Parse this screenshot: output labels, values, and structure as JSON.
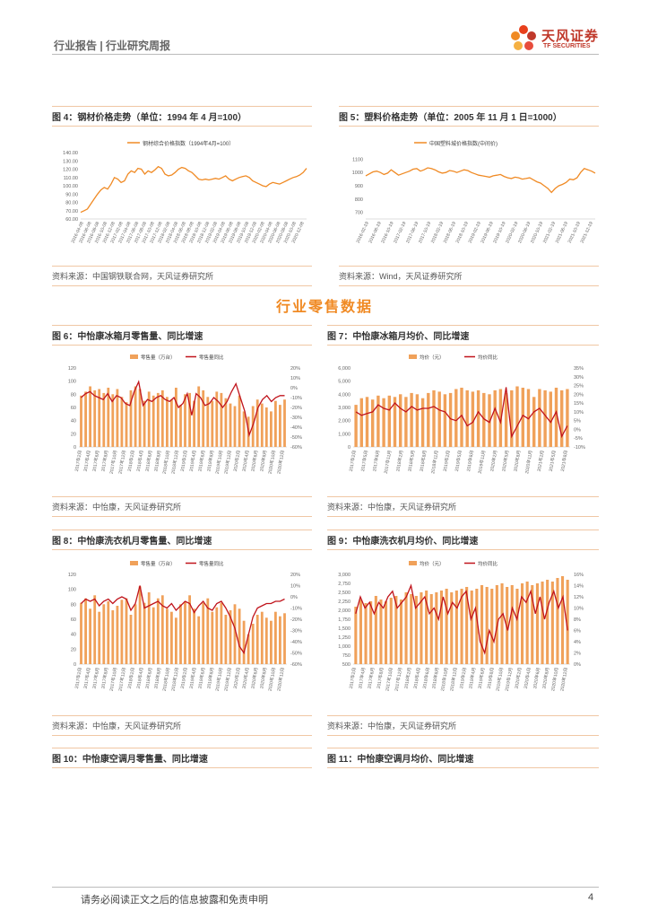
{
  "header": {
    "title": "行业报告 | 行业研究周报",
    "logo_cn": "天风证券",
    "logo_en": "TF SECURITIES"
  },
  "section_title": "行业零售数据",
  "figures": [
    {
      "caption": "图 4：钢材价格走势（单位：1994 年 4 月=100）",
      "source": "资料来源：中国钢铁联合网，天风证券研究所"
    },
    {
      "caption": "图 5：塑料价格走势（单位：2005 年 11 月 1 日=1000）",
      "source": "资料来源：Wind，天风证券研究所"
    },
    {
      "caption": "图 6：中怡康冰箱月零售量、同比增速",
      "source": "资料来源：中怡康，天风证券研究所"
    },
    {
      "caption": "图 7：中怡康冰箱月均价、同比增速",
      "source": "资料来源：中怡康，天风证券研究所"
    },
    {
      "caption": "图 8：中怡康洗衣机月零售量、同比增速",
      "source": "资料来源：中怡康，天风证券研究所"
    },
    {
      "caption": "图 9：中怡康洗衣机月均价、同比增速",
      "source": "资料来源：中怡康，天风证券研究所"
    },
    {
      "caption": "图 10：中怡康空调月零售量、同比增速"
    },
    {
      "caption": "图 11：中怡康空调月均价、同比增速"
    }
  ],
  "chart_data": [
    {
      "type": "line",
      "id": "steel",
      "legend": [
        "钢材综合价格指数（1994年4月=100）"
      ],
      "yticks": [
        "140.00",
        "130.00",
        "120.00",
        "110.00",
        "100.00",
        "90.00",
        "80.00",
        "70.00",
        "60.00"
      ],
      "ylim": [
        60,
        140
      ],
      "xticks": [
        "2016-04-08",
        "2016-06-08",
        "2016-08-08",
        "2016-10-08",
        "2016-12-08",
        "2017-02-08",
        "2017-04-08",
        "2017-06-08",
        "2017-08-08",
        "2017-10-08",
        "2017-12-08",
        "2018-02-08",
        "2018-04-08",
        "2018-06-08",
        "2018-08-08",
        "2018-10-08",
        "2018-12-08",
        "2019-02-08",
        "2019-04-08",
        "2019-06-08",
        "2019-08-08",
        "2019-10-08",
        "2019-12-08",
        "2020-02-08",
        "2020-04-08",
        "2020-06-08",
        "2020-08-08",
        "2020-10-08",
        "2020-12-08"
      ],
      "values": [
        68,
        70,
        72,
        78,
        84,
        90,
        95,
        98,
        96,
        102,
        110,
        108,
        104,
        106,
        114,
        118,
        116,
        121,
        120,
        114,
        118,
        116,
        119,
        123,
        121,
        114,
        112,
        113,
        116,
        120,
        122,
        121,
        118,
        116,
        112,
        108,
        107,
        108,
        107,
        108,
        109,
        108,
        110,
        112,
        108,
        106,
        108,
        110,
        111,
        112,
        110,
        106,
        104,
        102,
        100,
        99,
        102,
        104,
        103,
        102,
        104,
        106,
        108,
        110,
        111,
        113,
        116,
        121
      ]
    },
    {
      "type": "line",
      "id": "plastic",
      "legend": [
        "中国塑料城价格指数(中间价)"
      ],
      "yticks": [
        "1100",
        "1000",
        "900",
        "800",
        "700"
      ],
      "ylim": [
        650,
        1150
      ],
      "xticks": [
        "2016-02-19",
        "2016-06-19",
        "2016-10-19",
        "2017-02-19",
        "2017-06-19",
        "2017-10-19",
        "2018-02-19",
        "2018-06-19",
        "2018-10-19",
        "2019-02-19",
        "2019-06-19",
        "2019-10-19",
        "2020-02-19",
        "2020-06-19",
        "2020-10-19",
        "2021-02-19",
        "2021-06-19",
        "2021-10-19",
        "2021-12-19"
      ],
      "values": [
        975,
        990,
        1005,
        1010,
        1000,
        985,
        995,
        1020,
        1000,
        980,
        990,
        1000,
        1010,
        1025,
        1030,
        1010,
        1020,
        1035,
        1030,
        1020,
        1005,
        995,
        1000,
        1015,
        1010,
        1000,
        1010,
        1020,
        1015,
        1000,
        990,
        980,
        975,
        970,
        965,
        975,
        980,
        985,
        970,
        960,
        955,
        965,
        960,
        950,
        955,
        960,
        945,
        930,
        920,
        900,
        880,
        850,
        880,
        900,
        910,
        925,
        950,
        945,
        960,
        1000,
        1030,
        1020,
        1010,
        995
      ]
    },
    {
      "type": "bar",
      "id": "fridge_vol",
      "series": [
        {
          "name": "零售量（万台）",
          "axis": "left"
        },
        {
          "name": "零售量同比",
          "axis": "right"
        }
      ],
      "yticks_left": [
        "120",
        "100",
        "80",
        "60",
        "40",
        "20",
        "0"
      ],
      "yticks_right": [
        "20%",
        "10%",
        "0%",
        "-10%",
        "-20%",
        "-30%",
        "-40%",
        "-50%",
        "-60%"
      ],
      "ylim_left": [
        0,
        120
      ],
      "ylim_right": [
        -60,
        20
      ],
      "xticks": [
        "2017年2月",
        "2017年4月",
        "2017年6月",
        "2017年8月",
        "2017年10月",
        "2017年12月",
        "2018年2月",
        "2018年4月",
        "2018年6月",
        "2018年8月",
        "2018年10月",
        "2018年12月",
        "2019年2月",
        "2019年4月",
        "2019年6月",
        "2019年8月",
        "2019年10月",
        "2019年12月",
        "2020年2月",
        "2020年4月",
        "2020年6月",
        "2020年8月",
        "2020年10月",
        "2020年12月"
      ],
      "bars": [
        78,
        84,
        92,
        86,
        88,
        82,
        90,
        80,
        88,
        76,
        68,
        86,
        92,
        88,
        70,
        84,
        78,
        82,
        86,
        76,
        72,
        90,
        64,
        80,
        82,
        70,
        92,
        86,
        76,
        70,
        84,
        82,
        74,
        66,
        62,
        78,
        54,
        46,
        62,
        72,
        66,
        60,
        54,
        70,
        64,
        72
      ],
      "line": [
        -10,
        -6,
        -4,
        -8,
        -10,
        -12,
        -6,
        -14,
        -8,
        -10,
        -16,
        -18,
        -4,
        6,
        -18,
        -12,
        -14,
        -10,
        -8,
        -12,
        -14,
        -10,
        -20,
        -16,
        -6,
        -28,
        -6,
        -10,
        -18,
        -16,
        -10,
        -14,
        -20,
        -14,
        -4,
        4,
        -10,
        -24,
        -48,
        -36,
        -20,
        -12,
        -8,
        -14,
        -10,
        -8,
        -8
      ]
    },
    {
      "type": "bar",
      "id": "fridge_price",
      "series": [
        {
          "name": "均价（元）",
          "axis": "left"
        },
        {
          "name": "均价同比",
          "axis": "right"
        }
      ],
      "yticks_left": [
        "6,000",
        "5,000",
        "4,000",
        "3,000",
        "2,000",
        "1,000",
        "0"
      ],
      "yticks_right": [
        "35%",
        "30%",
        "25%",
        "20%",
        "15%",
        "10%",
        "5%",
        "0%",
        "-5%",
        "-10%"
      ],
      "ylim_left": [
        0,
        6000
      ],
      "ylim_right": [
        -10,
        35
      ],
      "xticks": [
        "2017年2月",
        "2017年5月",
        "2017年8月",
        "2017年11月",
        "2018年2月",
        "2018年5月",
        "2018年8月",
        "2018年11月",
        "2019年2月",
        "2019年5月",
        "2019年8月",
        "2019年11月",
        "2020年2月",
        "2020年5月",
        "2020年8月",
        "2020年11月",
        "2021年2月",
        "2021年5月",
        "2021年8月"
      ],
      "bars": [
        3200,
        3700,
        3800,
        3600,
        3900,
        3700,
        3900,
        3800,
        4000,
        3800,
        4100,
        4000,
        3700,
        4100,
        4300,
        4200,
        4000,
        4100,
        4400,
        4500,
        4300,
        4200,
        4300,
        4100,
        4000,
        4300,
        4400,
        4100,
        4300,
        4600,
        4500,
        4400,
        3800,
        4400,
        4300,
        4200,
        4500,
        4300,
        4400
      ],
      "line": [
        10,
        8,
        9,
        10,
        14,
        12,
        11,
        15,
        12,
        10,
        13,
        11,
        12,
        12,
        13,
        11,
        10,
        6,
        5,
        8,
        2,
        4,
        10,
        6,
        4,
        12,
        4,
        24,
        -4,
        2,
        8,
        6,
        10,
        12,
        8,
        4,
        10,
        -4,
        2
      ]
    },
    {
      "type": "bar",
      "id": "washer_vol",
      "series": [
        {
          "name": "零售量（万台）",
          "axis": "left"
        },
        {
          "name": "零售量同比",
          "axis": "right"
        }
      ],
      "yticks_left": [
        "120",
        "100",
        "80",
        "60",
        "40",
        "20",
        "0"
      ],
      "yticks_right": [
        "20%",
        "10%",
        "0%",
        "-10%",
        "-20%",
        "-30%",
        "-40%",
        "-50%",
        "-60%"
      ],
      "ylim_left": [
        0,
        120
      ],
      "ylim_right": [
        -60,
        20
      ],
      "xticks": [
        "2017年2月",
        "2017年4月",
        "2017年6月",
        "2017年8月",
        "2017年10月",
        "2017年12月",
        "2018年2月",
        "2018年4月",
        "2018年6月",
        "2018年8月",
        "2018年10月",
        "2018年12月",
        "2019年2月",
        "2019年4月",
        "2019年6月",
        "2019年8月",
        "2019年10月",
        "2019年12月",
        "2020年2月",
        "2020年4月",
        "2020年6月",
        "2020年8月",
        "2020年10月",
        "2020年12月"
      ],
      "bars": [
        82,
        88,
        74,
        92,
        70,
        80,
        84,
        72,
        78,
        86,
        88,
        66,
        80,
        104,
        82,
        96,
        76,
        88,
        92,
        74,
        70,
        62,
        80,
        84,
        92,
        74,
        64,
        82,
        88,
        70,
        76,
        82,
        66,
        72,
        80,
        74,
        58,
        40,
        54,
        66,
        70,
        62,
        58,
        70,
        64,
        68
      ],
      "line": [
        -6,
        -2,
        -4,
        -2,
        -8,
        -4,
        -2,
        -6,
        -2,
        0,
        -2,
        -12,
        -6,
        10,
        -10,
        -8,
        -6,
        -4,
        -8,
        -10,
        -6,
        -12,
        -8,
        -4,
        -6,
        -14,
        -8,
        -4,
        -10,
        -12,
        -6,
        -4,
        -10,
        -18,
        -28,
        -44,
        -50,
        -34,
        -18,
        -10,
        -8,
        -6,
        -6,
        -4,
        -4,
        -2
      ]
    },
    {
      "type": "bar",
      "id": "washer_price",
      "series": [
        {
          "name": "均价（元）",
          "axis": "left"
        },
        {
          "name": "均价同比",
          "axis": "right"
        }
      ],
      "yticks_left": [
        "3,000",
        "2,750",
        "2,500",
        "2,250",
        "2,000",
        "1,750",
        "1,500",
        "1,250",
        "1,000",
        "750",
        "500"
      ],
      "yticks_right": [
        "16%",
        "14%",
        "12%",
        "10%",
        "8%",
        "6%",
        "4%",
        "2%",
        "0%"
      ],
      "ylim_left": [
        500,
        3000
      ],
      "ylim_right": [
        0,
        16
      ],
      "xticks": [
        "2017年2月",
        "2017年4月",
        "2017年6月",
        "2017年8月",
        "2017年10月",
        "2017年12月",
        "2018年2月",
        "2018年4月",
        "2018年6月",
        "2018年8月",
        "2018年10月",
        "2018年12月",
        "2019年2月",
        "2019年4月",
        "2019年6月",
        "2019年8月",
        "2019年10月",
        "2019年12月",
        "2020年2月",
        "2020年4月",
        "2020年6月",
        "2020年8月",
        "2020年10月",
        "2020年12月"
      ],
      "bars": [
        2100,
        2300,
        2200,
        2250,
        2400,
        2300,
        2250,
        2350,
        2400,
        2300,
        2500,
        2450,
        2400,
        2500,
        2550,
        2450,
        2500,
        2550,
        2600,
        2500,
        2550,
        2600,
        2650,
        2550,
        2600,
        2700,
        2650,
        2600,
        2700,
        2750,
        2650,
        2700,
        2600,
        2750,
        2800,
        2700,
        2750,
        2800,
        2850,
        2800,
        2900,
        2950,
        2850
      ],
      "line": [
        9,
        12,
        10,
        11,
        9,
        11,
        10,
        12,
        13,
        10,
        11,
        12,
        14,
        10,
        11,
        12,
        9,
        10,
        8,
        12,
        9,
        11,
        10,
        12,
        13,
        8,
        10,
        4,
        2,
        6,
        4,
        8,
        9,
        6,
        10,
        8,
        12,
        11,
        13,
        9,
        12,
        8,
        11,
        13,
        10,
        12,
        6
      ]
    }
  ],
  "footer": {
    "disclaimer": "请务必阅读正文之后的信息披露和免责申明",
    "page": "4"
  },
  "colors": {
    "orange": "#f08a24",
    "bar": "#f0a15a",
    "red": "#c0141c",
    "header_red": "#c0392b"
  }
}
